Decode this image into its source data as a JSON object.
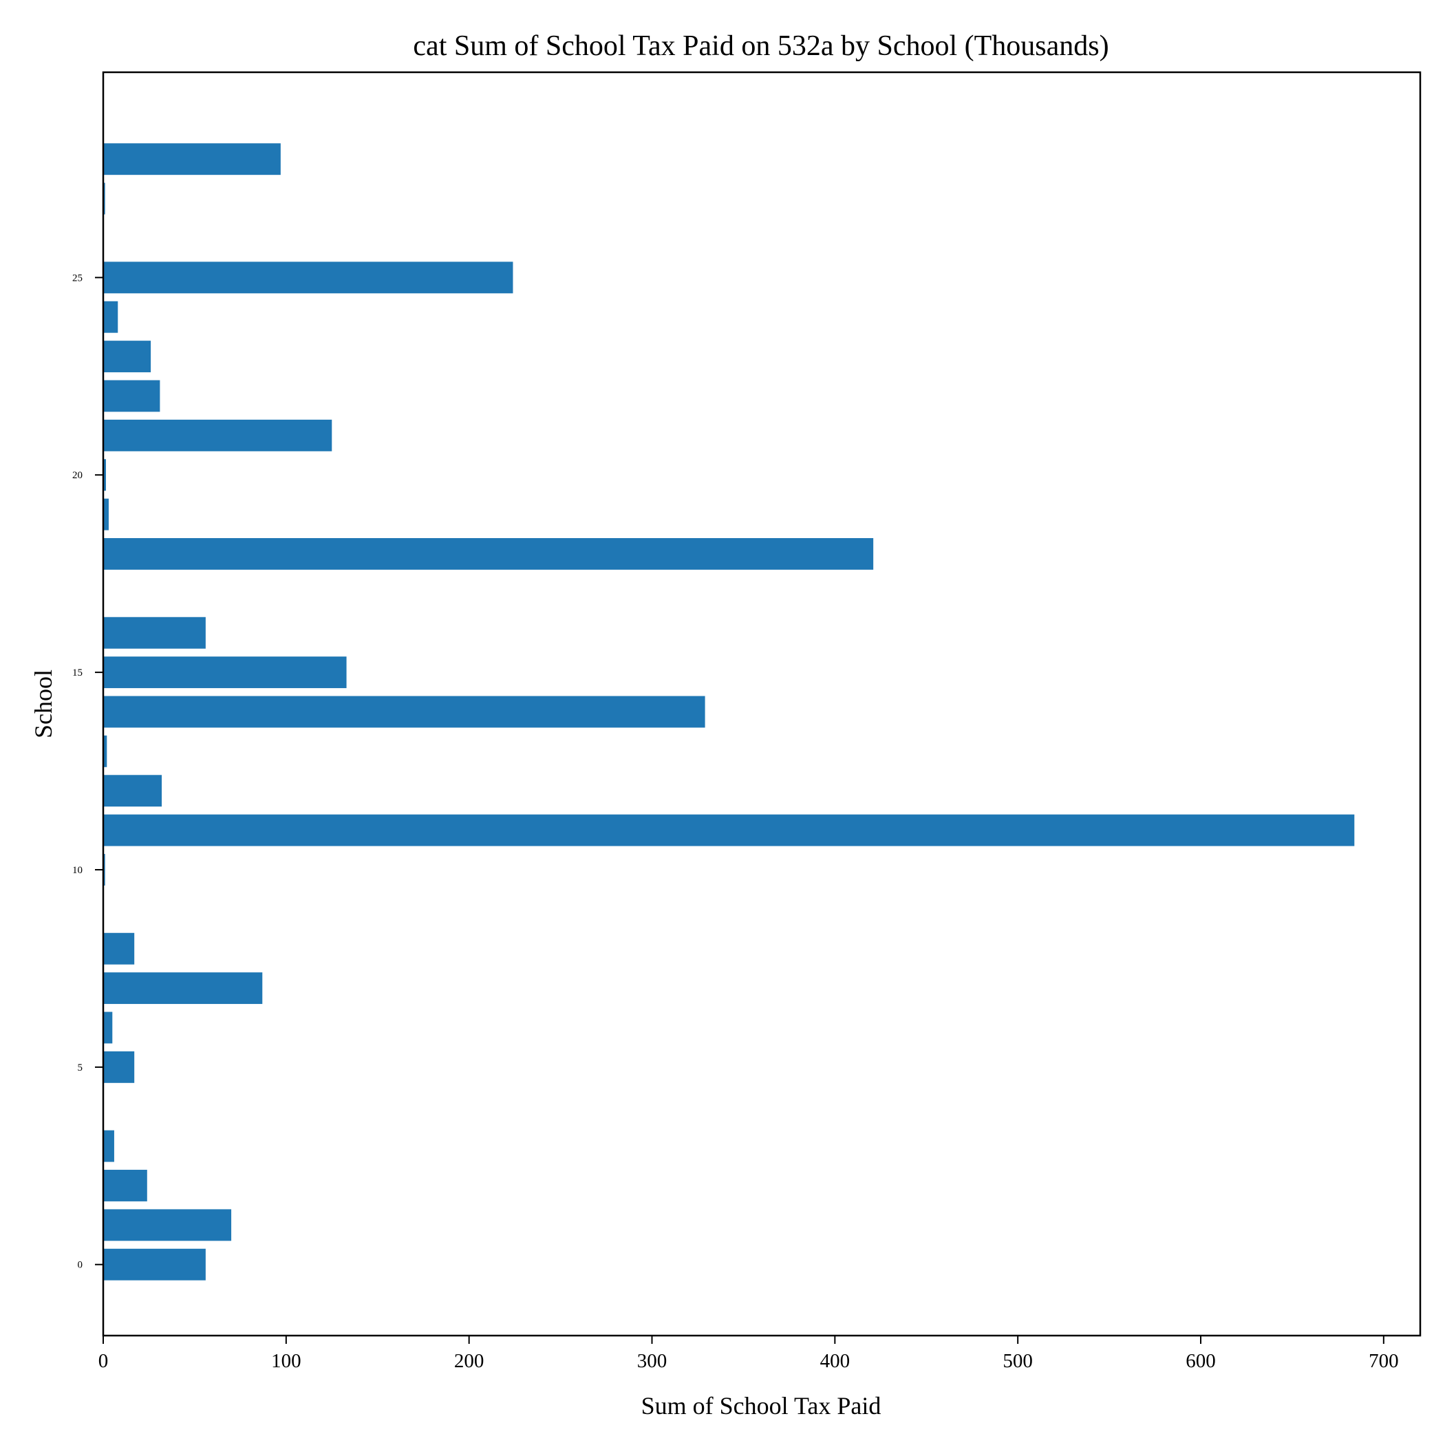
{
  "chart_data": {
    "type": "bar",
    "orientation": "horizontal",
    "title": "cat Sum of School Tax Paid on 532a by School (Thousands)",
    "xlabel": "Sum of School Tax Paid",
    "ylabel": "School",
    "xlim": [
      0,
      720
    ],
    "ylim": [
      -1.8,
      30.2
    ],
    "x_ticks": [
      0,
      100,
      200,
      300,
      400,
      500,
      600,
      700
    ],
    "y_ticks": [
      0,
      5,
      10,
      15,
      20,
      25
    ],
    "categories": [
      0,
      1,
      2,
      3,
      4,
      5,
      6,
      7,
      8,
      9,
      10,
      11,
      12,
      13,
      14,
      15,
      16,
      17,
      18,
      19,
      20,
      21,
      22,
      23,
      24,
      25,
      26,
      27,
      28
    ],
    "values": [
      56,
      70,
      24,
      6,
      0,
      17,
      5,
      87,
      17,
      0,
      1,
      684,
      32,
      2,
      329,
      133,
      56,
      0,
      421,
      3,
      1.5,
      125,
      31,
      26,
      8,
      224,
      0,
      1,
      97
    ],
    "bar_color": "#1f77b4",
    "grid": false,
    "legend": "none"
  }
}
